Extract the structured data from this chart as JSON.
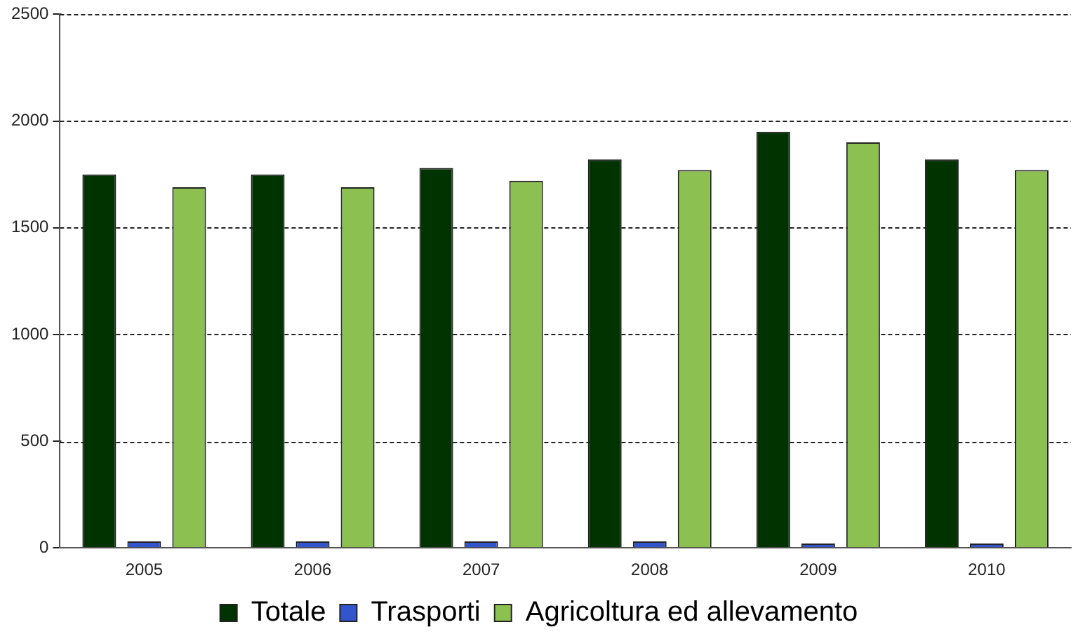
{
  "chart_data": {
    "type": "bar",
    "categories": [
      "2005",
      "2006",
      "2007",
      "2008",
      "2009",
      "2010"
    ],
    "series": [
      {
        "name": "Totale",
        "color": "#003300",
        "values": [
          1750,
          1750,
          1780,
          1820,
          1950,
          1820
        ]
      },
      {
        "name": "Trasporti",
        "color": "#3355cc",
        "values": [
          30,
          30,
          30,
          30,
          20,
          20
        ]
      },
      {
        "name": "Agricoltura ed allevamento",
        "color": "#8cc152",
        "values": [
          1690,
          1690,
          1720,
          1770,
          1900,
          1770
        ]
      }
    ],
    "ylim": [
      0,
      2500
    ],
    "yticks": [
      0,
      500,
      1000,
      1500,
      2000,
      2500
    ],
    "grid": "y",
    "legend": "bottom"
  }
}
